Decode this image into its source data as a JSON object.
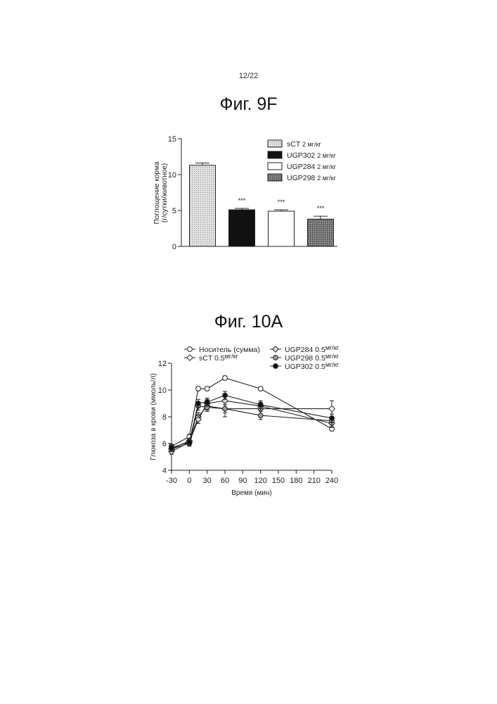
{
  "page_number": "12/22",
  "colors": {
    "ink": "#222222",
    "hatch_light": "#c8c8c8",
    "hatch_dark": "#555555",
    "black": "#111111"
  },
  "figures": {
    "fig9f": {
      "title": "Фиг. 9F"
    },
    "fig10a": {
      "title": "Фиг. 10А"
    }
  },
  "chart_data": [
    {
      "id": "fig9f",
      "type": "bar",
      "ylabel": [
        "Поглощение корма",
        "(г/сутки/животное)"
      ],
      "ylim": [
        0,
        15
      ],
      "yticks": [
        0,
        5,
        10,
        15
      ],
      "ytick_labels": [
        "0",
        "5",
        "10",
        "15"
      ],
      "grid": false,
      "legend_position": "top-right",
      "series": [
        {
          "name": "sCT",
          "dose": "2 мг/кг",
          "value": 11.3,
          "error": 0.3,
          "significance": "",
          "fill": "dots"
        },
        {
          "name": "UGP302",
          "dose": "2 мг/кг",
          "value": 5.1,
          "error": 0.2,
          "significance": "***",
          "fill": "black"
        },
        {
          "name": "UGP284",
          "dose": "2 мг/кг",
          "value": 4.9,
          "error": 0.2,
          "significance": "***",
          "fill": "white"
        },
        {
          "name": "UGP298",
          "dose": "2 мг/кг",
          "value": 3.8,
          "error": 0.4,
          "significance": "***",
          "fill": "hatch"
        }
      ]
    },
    {
      "id": "fig10a",
      "type": "line",
      "xlabel": "Время (мин)",
      "ylabel": "Глюкоза в крови (ммоль/л)",
      "xlim": [
        -30,
        240
      ],
      "ylim": [
        4,
        12
      ],
      "xticks": [
        -30,
        0,
        30,
        60,
        90,
        120,
        150,
        180,
        210,
        240
      ],
      "xtick_labels": [
        "-30",
        "0",
        "30",
        "60",
        "90",
        "120",
        "150",
        "180",
        "210",
        "240"
      ],
      "yticks": [
        4,
        6,
        8,
        10,
        12
      ],
      "ytick_labels": [
        "4",
        "6",
        "8",
        "10",
        "12"
      ],
      "grid": false,
      "legend_position": "top",
      "x": [
        -30,
        0,
        15,
        30,
        60,
        120,
        240
      ],
      "series": [
        {
          "name": "Носитель (сумма)",
          "dose": "",
          "marker": "open-circle",
          "values": [
            5.8,
            6.5,
            10.1,
            10.1,
            10.9,
            10.1,
            7.1
          ],
          "errors": [
            0.15,
            0.2,
            0.15,
            0.15,
            0.15,
            0.15,
            0.15
          ]
        },
        {
          "name": "sCT",
          "dose": "0.5 мг/кг",
          "marker": "open-diamond",
          "values": [
            5.6,
            6.2,
            8.0,
            8.8,
            8.6,
            8.6,
            8.6
          ],
          "errors": [
            0.2,
            0.2,
            0.3,
            0.3,
            0.6,
            0.4,
            0.6
          ]
        },
        {
          "name": "UGP284",
          "dose": "0.5 мг/кг",
          "marker": "light-diamond",
          "values": [
            5.4,
            6.1,
            7.8,
            9.0,
            9.2,
            8.8,
            7.5
          ],
          "errors": [
            0.2,
            0.2,
            0.3,
            0.3,
            0.3,
            0.3,
            0.3
          ]
        },
        {
          "name": "UGP298",
          "dose": "0.5 мг/кг",
          "marker": "grey-circle",
          "values": [
            5.6,
            6.0,
            8.8,
            8.7,
            8.6,
            8.1,
            7.7
          ],
          "errors": [
            0.2,
            0.2,
            0.3,
            0.3,
            0.3,
            0.3,
            0.3
          ]
        },
        {
          "name": "UGP302",
          "dose": "0.5 мг/кг",
          "marker": "filled-circle",
          "values": [
            5.7,
            6.1,
            9.0,
            9.1,
            9.6,
            8.9,
            7.9
          ],
          "errors": [
            0.2,
            0.2,
            0.3,
            0.3,
            0.3,
            0.3,
            0.3
          ]
        }
      ]
    }
  ]
}
